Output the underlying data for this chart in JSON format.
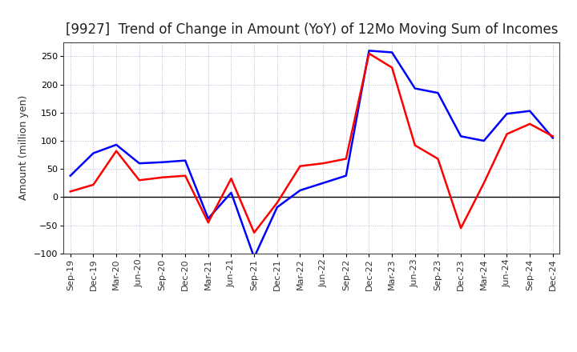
{
  "title": "[9927]  Trend of Change in Amount (YoY) of 12Mo Moving Sum of Incomes",
  "ylabel": "Amount (million yen)",
  "x_labels": [
    "Sep-19",
    "Dec-19",
    "Mar-20",
    "Jun-20",
    "Sep-20",
    "Dec-20",
    "Mar-21",
    "Jun-21",
    "Sep-21",
    "Dec-21",
    "Mar-22",
    "Jun-22",
    "Sep-22",
    "Dec-22",
    "Mar-23",
    "Jun-23",
    "Sep-23",
    "Dec-23",
    "Mar-24",
    "Jun-24",
    "Sep-24",
    "Dec-24"
  ],
  "ordinary_income": [
    38,
    78,
    93,
    60,
    62,
    65,
    -38,
    8,
    -107,
    -18,
    12,
    25,
    38,
    260,
    257,
    193,
    185,
    108,
    100,
    148,
    153,
    105
  ],
  "net_income": [
    10,
    22,
    82,
    30,
    35,
    38,
    -45,
    33,
    -63,
    -10,
    55,
    60,
    68,
    255,
    230,
    92,
    68,
    -55,
    25,
    112,
    130,
    108
  ],
  "ordinary_color": "#0000ff",
  "net_color": "#ff0000",
  "ylim": [
    -100,
    275
  ],
  "yticks": [
    -100,
    -50,
    0,
    50,
    100,
    150,
    200,
    250
  ],
  "background_color": "#ffffff",
  "grid_color": "#aaaacc",
  "title_fontsize": 12,
  "axis_fontsize": 9,
  "legend_fontsize": 10,
  "tick_fontsize": 8
}
